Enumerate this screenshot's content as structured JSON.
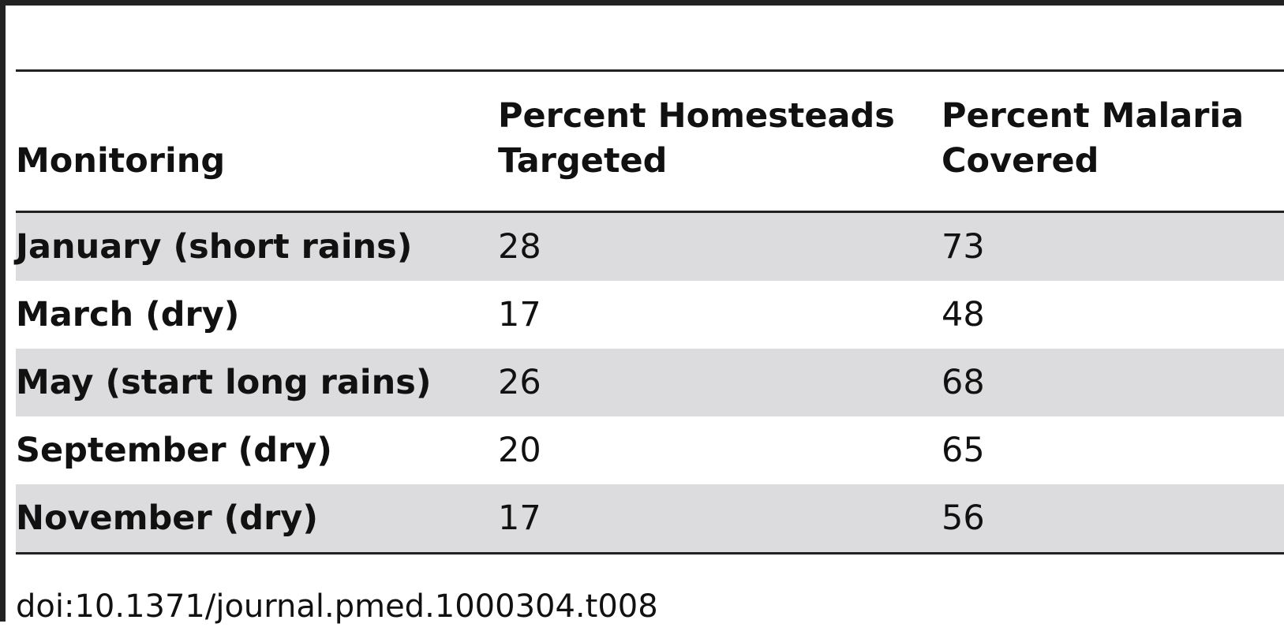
{
  "table": {
    "headers": [
      "Monitoring",
      "Percent Homesteads\nTargeted",
      "Percent Malaria\nCovered"
    ],
    "rows": [
      {
        "label": "January (short rains)",
        "homesteads": "28",
        "malaria": "73"
      },
      {
        "label": "March (dry)",
        "homesteads": "17",
        "malaria": "48"
      },
      {
        "label": "May (start long rains)",
        "homesteads": "26",
        "malaria": "68"
      },
      {
        "label": "September (dry)",
        "homesteads": "20",
        "malaria": "65"
      },
      {
        "label": "November (dry)",
        "homesteads": "17",
        "malaria": "56"
      }
    ]
  },
  "doi": "doi:10.1371/journal.pmed.1000304.t008",
  "colors": {
    "rule": "#222222",
    "shaded_row": "#dcdcde",
    "text": "#111111"
  }
}
